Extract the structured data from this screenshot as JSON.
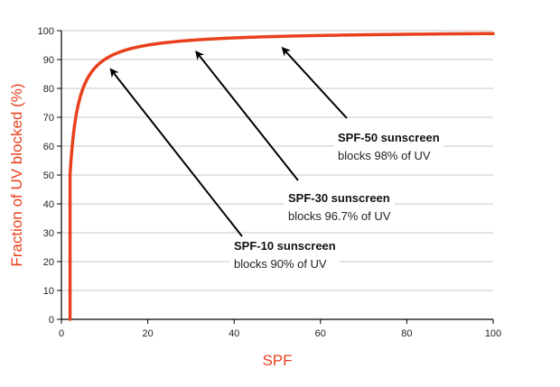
{
  "chart_data": {
    "type": "line",
    "title": "",
    "xlabel": "SPF",
    "ylabel": "Fraction of UV blocked (%)",
    "xlim": [
      0,
      100
    ],
    "ylim": [
      0,
      100
    ],
    "x_ticks": [
      "0",
      "20",
      "40",
      "60",
      "80",
      "100"
    ],
    "y_ticks": [
      "0",
      "10",
      "20",
      "30",
      "40",
      "50",
      "60",
      "70",
      "80",
      "90",
      "100"
    ],
    "grid": "horizontal",
    "series": [
      {
        "formula": "100 * (1 - 1/SPF)",
        "x": [
          2,
          2.5,
          3,
          4,
          5,
          6,
          8,
          10,
          12,
          15,
          20,
          25,
          30,
          40,
          50,
          60,
          70,
          80,
          90,
          100
        ],
        "y": [
          50,
          60,
          66.7,
          75,
          80,
          83.3,
          87.5,
          90,
          91.7,
          93.3,
          95,
          96,
          96.7,
          97.5,
          98,
          98.3,
          98.6,
          98.8,
          98.9,
          99
        ]
      }
    ],
    "annotations": [
      {
        "title": "SPF-10 sunscreen",
        "text": "blocks 90% of UV",
        "x": 10,
        "y": 90
      },
      {
        "title": "SPF-30 sunscreen",
        "text": "blocks 96.7% of UV",
        "x": 30,
        "y": 96.7
      },
      {
        "title": "SPF-50 sunscreen",
        "text": "blocks 98% of UV",
        "x": 50,
        "y": 98
      }
    ]
  },
  "colors": {
    "curve": "#e8401c",
    "axis_title": "#e8401c",
    "grid": "#c8c8c8",
    "axis": "#000000",
    "arrow": "#000000"
  }
}
